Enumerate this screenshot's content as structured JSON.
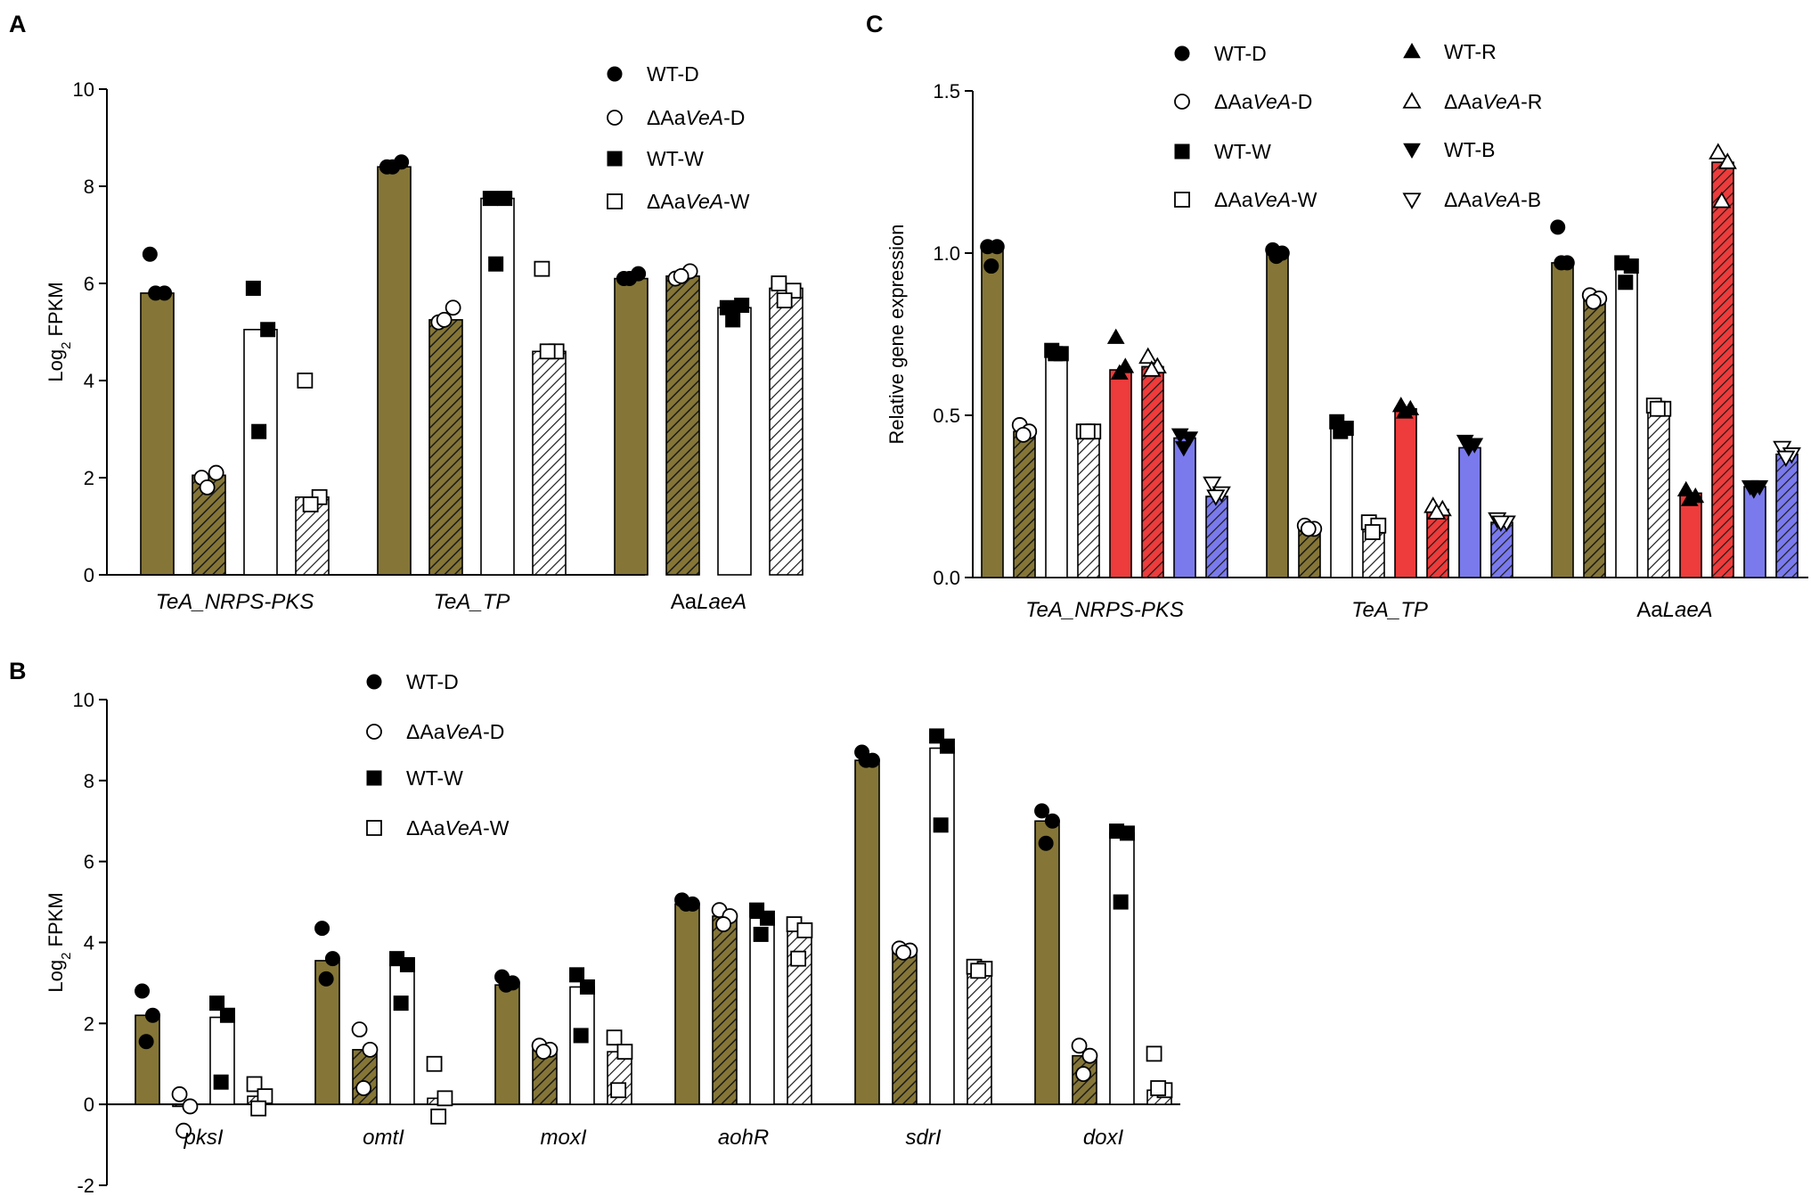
{
  "colors": {
    "olive": "#857637",
    "red": "#ee3b3b",
    "blue": "#7a7aed",
    "white": "#ffffff",
    "black": "#000000"
  },
  "panels": {
    "A": "A",
    "B": "B",
    "C": "C"
  },
  "legend_AB": [
    {
      "label_pre": "WT-D",
      "label_it": "",
      "label_post": "",
      "marker": "filled-circle"
    },
    {
      "label_pre": "ΔAa",
      "label_it": "VeA",
      "label_post": "-D",
      "marker": "open-circle"
    },
    {
      "label_pre": "WT-W",
      "label_it": "",
      "label_post": "",
      "marker": "filled-square"
    },
    {
      "label_pre": "ΔAa",
      "label_it": "VeA",
      "label_post": "-W",
      "marker": "open-square"
    }
  ],
  "legend_C": [
    {
      "label_pre": "WT-D",
      "label_it": "",
      "label_post": "",
      "marker": "filled-circle"
    },
    {
      "label_pre": "ΔAa",
      "label_it": "VeA",
      "label_post": "-D",
      "marker": "open-circle"
    },
    {
      "label_pre": "WT-W",
      "label_it": "",
      "label_post": "",
      "marker": "filled-square"
    },
    {
      "label_pre": "ΔAa",
      "label_it": "VeA",
      "label_post": "-W",
      "marker": "open-square"
    },
    {
      "label_pre": "WT-R",
      "label_it": "",
      "label_post": "",
      "marker": "filled-up"
    },
    {
      "label_pre": "ΔAa",
      "label_it": "VeA",
      "label_post": "-R",
      "marker": "open-up"
    },
    {
      "label_pre": "WT-B",
      "label_it": "",
      "label_post": "",
      "marker": "filled-down"
    },
    {
      "label_pre": "ΔAa",
      "label_it": "VeA",
      "label_post": "-B",
      "marker": "open-down"
    }
  ],
  "chart_data": [
    {
      "panel": "A",
      "type": "bar",
      "ylabel_main": "Log",
      "ylabel_sub": "2",
      "ylabel_rest": " FPKM",
      "ylim": [
        0,
        10
      ],
      "yticks": [
        "0",
        "2",
        "4",
        "6",
        "8",
        "10"
      ],
      "categories": [
        {
          "pre": "",
          "it": "TeA_NRPS-PKS"
        },
        {
          "pre": "",
          "it": "TeA_TP"
        },
        {
          "pre": "Aa",
          "it": "LaeA"
        }
      ],
      "series": [
        {
          "name": "WT-D",
          "fill": "olive",
          "hatch": false,
          "marker": "filled-circle",
          "values": [
            5.8,
            8.4,
            6.1
          ],
          "points": [
            [
              6.6,
              5.8,
              5.8
            ],
            [
              8.4,
              8.5,
              8.4
            ],
            [
              6.1,
              6.2,
              6.1
            ]
          ]
        },
        {
          "name": "ΔAaVeA-D",
          "fill": "olive",
          "hatch": true,
          "marker": "open-circle",
          "values": [
            2.05,
            5.25,
            6.15
          ],
          "points": [
            [
              2.0,
              2.1,
              1.8
            ],
            [
              5.2,
              5.5,
              5.25
            ],
            [
              6.1,
              6.25,
              6.15
            ]
          ]
        },
        {
          "name": "WT-W",
          "fill": "white",
          "hatch": false,
          "marker": "filled-square",
          "values": [
            5.05,
            7.75,
            5.5
          ],
          "points": [
            [
              5.9,
              5.05,
              2.95
            ],
            [
              7.75,
              7.75,
              6.4
            ],
            [
              5.5,
              5.55,
              5.25
            ]
          ]
        },
        {
          "name": "ΔAaVeA-W",
          "fill": "white",
          "hatch": true,
          "marker": "open-square",
          "values": [
            1.6,
            4.6,
            5.9
          ],
          "points": [
            [
              4.0,
              1.6,
              1.45
            ],
            [
              6.3,
              4.6,
              4.6
            ],
            [
              6.0,
              5.85,
              5.65
            ]
          ]
        }
      ]
    },
    {
      "panel": "B",
      "type": "bar",
      "ylabel_main": "Log",
      "ylabel_sub": "2",
      "ylabel_rest": " FPKM",
      "ylim": [
        -2,
        10
      ],
      "yticks": [
        "-2",
        "0",
        "2",
        "4",
        "6",
        "8",
        "10"
      ],
      "categories": [
        {
          "pre": "",
          "it": "pksI"
        },
        {
          "pre": "",
          "it": "omtI"
        },
        {
          "pre": "",
          "it": "moxI"
        },
        {
          "pre": "",
          "it": "aohR"
        },
        {
          "pre": "",
          "it": "sdrI"
        },
        {
          "pre": "",
          "it": "doxI"
        }
      ],
      "series": [
        {
          "name": "WT-D",
          "fill": "olive",
          "hatch": false,
          "marker": "filled-circle",
          "values": [
            2.2,
            3.55,
            2.95,
            4.95,
            8.5,
            7.0
          ],
          "points": [
            [
              2.8,
              2.2,
              1.55
            ],
            [
              4.35,
              3.6,
              3.1
            ],
            [
              3.15,
              3.0,
              2.95
            ],
            [
              5.05,
              4.95,
              4.95
            ],
            [
              8.7,
              8.5,
              8.5
            ],
            [
              7.25,
              7.0,
              6.45
            ]
          ]
        },
        {
          "name": "ΔAaVeA-D",
          "fill": "olive",
          "hatch": true,
          "marker": "open-circle",
          "values": [
            -0.05,
            1.35,
            1.35,
            4.65,
            3.8,
            1.2
          ],
          "points": [
            [
              0.25,
              -0.05,
              -0.65
            ],
            [
              1.85,
              1.35,
              0.4
            ],
            [
              1.45,
              1.35,
              1.3
            ],
            [
              4.8,
              4.65,
              4.45
            ],
            [
              3.85,
              3.8,
              3.75
            ],
            [
              1.45,
              1.2,
              0.75
            ]
          ]
        },
        {
          "name": "WT-W",
          "fill": "white",
          "hatch": false,
          "marker": "filled-square",
          "values": [
            2.15,
            3.45,
            2.9,
            4.6,
            8.8,
            6.7
          ],
          "points": [
            [
              2.5,
              2.2,
              0.55
            ],
            [
              3.6,
              3.45,
              2.5
            ],
            [
              3.2,
              2.9,
              1.7
            ],
            [
              4.8,
              4.6,
              4.2
            ],
            [
              9.1,
              8.85,
              6.9
            ],
            [
              6.75,
              6.7,
              5.0
            ]
          ]
        },
        {
          "name": "ΔAaVeA-W",
          "fill": "white",
          "hatch": true,
          "marker": "open-square",
          "values": [
            0.2,
            0.15,
            1.3,
            4.3,
            3.35,
            0.35
          ],
          "points": [
            [
              0.5,
              0.2,
              -0.1
            ],
            [
              1.0,
              0.15,
              -0.3
            ],
            [
              1.65,
              1.3,
              0.35
            ],
            [
              4.45,
              4.3,
              3.6
            ],
            [
              3.4,
              3.35,
              3.3
            ],
            [
              1.25,
              0.35,
              0.4
            ]
          ]
        }
      ]
    },
    {
      "panel": "C",
      "type": "bar",
      "ylabel_main": "Relative gene expression",
      "ylabel_sub": "",
      "ylabel_rest": "",
      "ylim": [
        0,
        1.5
      ],
      "yticks": [
        "0.0",
        "0.5",
        "1.0",
        "1.5"
      ],
      "categories": [
        {
          "pre": "",
          "it": "TeA_NRPS-PKS"
        },
        {
          "pre": "",
          "it": "TeA_TP"
        },
        {
          "pre": "Aa",
          "it": "LaeA"
        }
      ],
      "series": [
        {
          "name": "WT-D",
          "fill": "olive",
          "hatch": false,
          "marker": "filled-circle",
          "values": [
            1.02,
            1.0,
            0.97
          ],
          "points": [
            [
              1.02,
              1.02,
              0.96
            ],
            [
              1.01,
              1.0,
              0.99
            ],
            [
              1.08,
              0.97,
              0.97
            ]
          ]
        },
        {
          "name": "ΔAaVeA-D",
          "fill": "olive",
          "hatch": true,
          "marker": "open-circle",
          "values": [
            0.45,
            0.15,
            0.86
          ],
          "points": [
            [
              0.47,
              0.45,
              0.44
            ],
            [
              0.16,
              0.15,
              0.15
            ],
            [
              0.87,
              0.86,
              0.85
            ]
          ]
        },
        {
          "name": "WT-W",
          "fill": "white",
          "hatch": false,
          "marker": "filled-square",
          "values": [
            0.69,
            0.46,
            0.95
          ],
          "points": [
            [
              0.7,
              0.69,
              0.69
            ],
            [
              0.48,
              0.46,
              0.45
            ],
            [
              0.97,
              0.96,
              0.91
            ]
          ]
        },
        {
          "name": "ΔAaVeA-W",
          "fill": "white",
          "hatch": true,
          "marker": "open-square",
          "values": [
            0.45,
            0.16,
            0.52
          ],
          "points": [
            [
              0.45,
              0.45,
              0.45
            ],
            [
              0.17,
              0.16,
              0.14
            ],
            [
              0.53,
              0.52,
              0.52
            ]
          ]
        },
        {
          "name": "WT-R",
          "fill": "red",
          "hatch": false,
          "marker": "filled-up",
          "values": [
            0.64,
            0.52,
            0.26
          ],
          "points": [
            [
              0.74,
              0.65,
              0.63
            ],
            [
              0.53,
              0.52,
              0.51
            ],
            [
              0.27,
              0.25,
              0.24
            ]
          ]
        },
        {
          "name": "ΔAaVeA-R",
          "fill": "red",
          "hatch": true,
          "marker": "open-up",
          "values": [
            0.65,
            0.21,
            1.28
          ],
          "points": [
            [
              0.68,
              0.65,
              0.64
            ],
            [
              0.22,
              0.21,
              0.2
            ],
            [
              1.31,
              1.28,
              1.16
            ]
          ]
        },
        {
          "name": "WT-B",
          "fill": "blue",
          "hatch": false,
          "marker": "filled-down",
          "values": [
            0.43,
            0.4,
            0.28
          ],
          "points": [
            [
              0.44,
              0.43,
              0.4
            ],
            [
              0.42,
              0.41,
              0.4
            ],
            [
              0.28,
              0.28,
              0.27
            ]
          ]
        },
        {
          "name": "ΔAaVeA-B",
          "fill": "blue",
          "hatch": true,
          "marker": "open-down",
          "values": [
            0.25,
            0.17,
            0.38
          ],
          "points": [
            [
              0.29,
              0.26,
              0.25
            ],
            [
              0.18,
              0.17,
              0.17
            ],
            [
              0.4,
              0.38,
              0.37
            ]
          ]
        }
      ]
    }
  ]
}
